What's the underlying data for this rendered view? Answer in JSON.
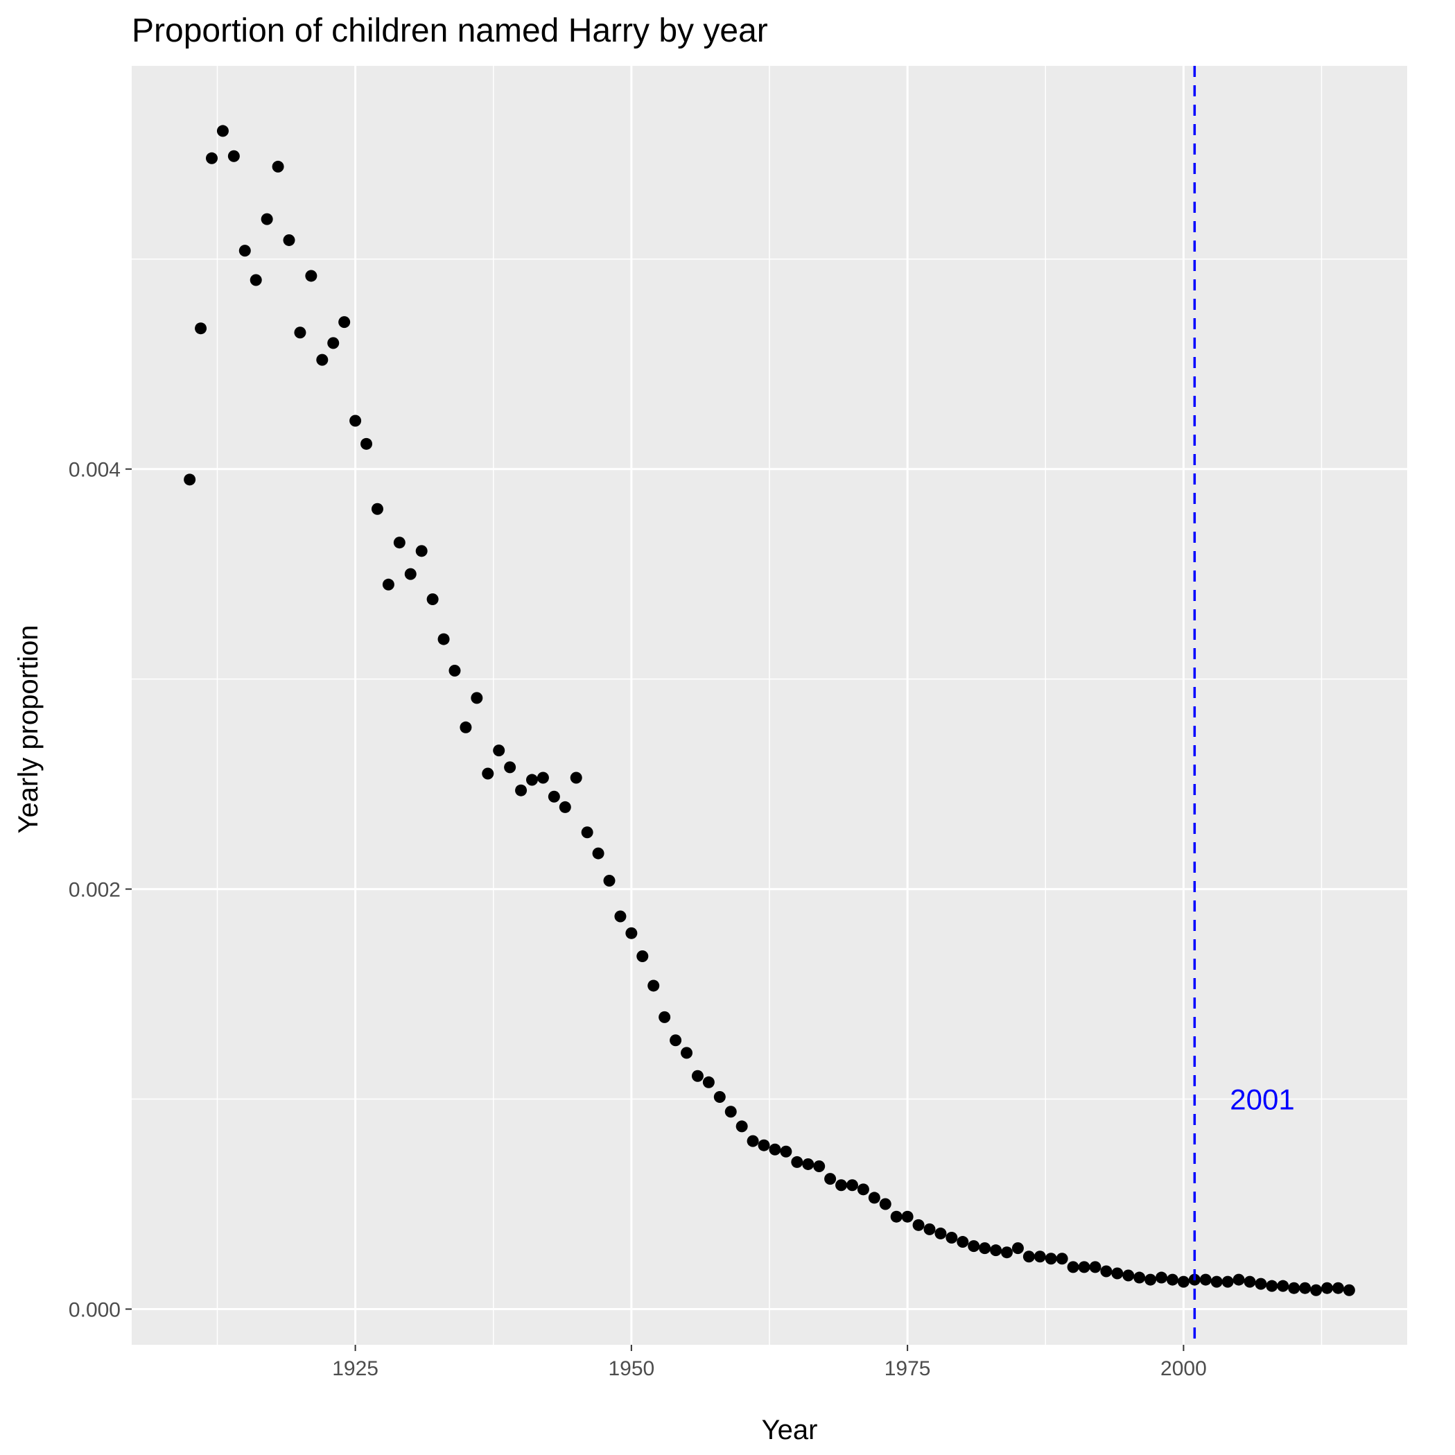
{
  "chart_data": {
    "type": "scatter",
    "title": "Proportion of children named Harry by year",
    "xlabel": "Year",
    "ylabel": "Yearly proportion",
    "xlim": [
      1904.75,
      2020.25
    ],
    "ylim": [
      -0.00017,
      0.00592
    ],
    "x_ticks": [
      1925,
      1950,
      1975,
      2000
    ],
    "x_tick_labels": [
      "1925",
      "1950",
      "1975",
      "2000"
    ],
    "x_minor_ticks": [
      1912.5,
      1937.5,
      1962.5,
      1987.5,
      2012.5
    ],
    "y_ticks": [
      0,
      0.002,
      0.004
    ],
    "y_tick_labels": [
      "0.000",
      "0.002",
      "0.004"
    ],
    "y_minor_ticks": [
      0.001,
      0.003,
      0.005
    ],
    "grid": true,
    "panel_background": "#ebebeb",
    "grid_color": "#ffffff",
    "point_color": "#000000",
    "vline": {
      "x": 2001,
      "color": "#0000ff",
      "style": "dashed"
    },
    "annotation": {
      "text": "2001",
      "x": 2004.2,
      "y": 0.001,
      "color": "#0000ff"
    },
    "x": [
      1910,
      1911,
      1912,
      1913,
      1914,
      1915,
      1916,
      1917,
      1918,
      1919,
      1920,
      1921,
      1922,
      1923,
      1924,
      1925,
      1926,
      1927,
      1928,
      1929,
      1930,
      1931,
      1932,
      1933,
      1934,
      1935,
      1936,
      1937,
      1938,
      1939,
      1940,
      1941,
      1942,
      1943,
      1944,
      1945,
      1946,
      1947,
      1948,
      1949,
      1950,
      1951,
      1952,
      1953,
      1954,
      1955,
      1956,
      1957,
      1958,
      1959,
      1960,
      1961,
      1962,
      1963,
      1964,
      1965,
      1966,
      1967,
      1968,
      1969,
      1970,
      1971,
      1972,
      1973,
      1974,
      1975,
      1976,
      1977,
      1978,
      1979,
      1980,
      1981,
      1982,
      1983,
      1984,
      1985,
      1986,
      1987,
      1988,
      1989,
      1990,
      1991,
      1992,
      1993,
      1994,
      1995,
      1996,
      1997,
      1998,
      1999,
      2000,
      2001,
      2002,
      2003,
      2004,
      2005,
      2006,
      2007,
      2008,
      2009,
      2010,
      2011,
      2012,
      2013,
      2014,
      2015
    ],
    "y": [
      0.00395,
      0.00467,
      0.00548,
      0.00561,
      0.00549,
      0.00504,
      0.0049,
      0.00519,
      0.00544,
      0.00509,
      0.00465,
      0.00492,
      0.00452,
      0.0046,
      0.0047,
      0.00423,
      0.00412,
      0.00381,
      0.00345,
      0.00365,
      0.0035,
      0.00361,
      0.00338,
      0.00319,
      0.00304,
      0.00277,
      0.00291,
      0.00255,
      0.00266,
      0.00258,
      0.00247,
      0.00252,
      0.00253,
      0.00244,
      0.00239,
      0.00253,
      0.00227,
      0.00217,
      0.00204,
      0.00187,
      0.00179,
      0.00168,
      0.00154,
      0.00139,
      0.00128,
      0.00122,
      0.00111,
      0.00108,
      0.00101,
      0.00094,
      0.00087,
      0.0008,
      0.00078,
      0.00076,
      0.00075,
      0.0007,
      0.00069,
      0.00068,
      0.00062,
      0.00059,
      0.00059,
      0.00057,
      0.00053,
      0.0005,
      0.00044,
      0.00044,
      0.0004,
      0.00038,
      0.00036,
      0.00034,
      0.00032,
      0.0003,
      0.00029,
      0.00028,
      0.00027,
      0.00029,
      0.00025,
      0.00025,
      0.00024,
      0.00024,
      0.0002,
      0.0002,
      0.0002,
      0.00018,
      0.00017,
      0.00016,
      0.00015,
      0.00014,
      0.00015,
      0.00014,
      0.00013,
      0.00014,
      0.00014,
      0.00013,
      0.00013,
      0.00014,
      0.00013,
      0.00012,
      0.00011,
      0.00011,
      0.0001,
      0.0001,
      9e-05,
      0.0001,
      0.0001,
      9e-05
    ]
  }
}
